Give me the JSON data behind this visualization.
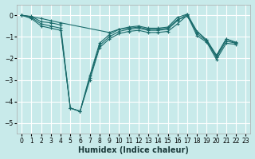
{
  "xlabel": "Humidex (Indice chaleur)",
  "bg_color": "#c8eaea",
  "grid_color": "#ffffff",
  "line_color": "#1a6b6b",
  "xlim": [
    -0.5,
    23.5
  ],
  "ylim": [
    -5.5,
    0.5
  ],
  "xticks": [
    0,
    1,
    2,
    3,
    4,
    5,
    6,
    7,
    8,
    9,
    10,
    11,
    12,
    13,
    14,
    15,
    16,
    17,
    18,
    19,
    20,
    21,
    22,
    23
  ],
  "yticks": [
    0,
    -1,
    -2,
    -3,
    -4,
    -5
  ],
  "series": [
    {
      "x": [
        0,
        1,
        2,
        3,
        4,
        5,
        6,
        7,
        8,
        9,
        10,
        11,
        12,
        13,
        14,
        15,
        16,
        17,
        18,
        19,
        20,
        21,
        22
      ],
      "y": [
        0.0,
        -0.05,
        -0.3,
        -0.35,
        -0.45,
        -4.3,
        -4.45,
        -2.8,
        -1.3,
        -0.9,
        -0.65,
        -0.55,
        -0.5,
        -0.6,
        -0.6,
        -0.55,
        -0.1,
        0.05,
        -0.75,
        -1.15,
        -1.85,
        -1.1,
        -1.25
      ]
    },
    {
      "x": [
        0,
        1,
        2,
        3,
        4,
        5,
        6,
        7,
        8,
        9,
        10,
        11,
        12,
        13,
        14,
        15,
        16,
        17,
        18,
        19,
        20,
        21,
        22
      ],
      "y": [
        0.0,
        -0.1,
        -0.4,
        -0.5,
        -0.6,
        -4.3,
        -4.45,
        -2.9,
        -1.4,
        -1.0,
        -0.75,
        -0.65,
        -0.6,
        -0.7,
        -0.7,
        -0.65,
        -0.25,
        0.05,
        -0.85,
        -1.2,
        -1.95,
        -1.2,
        -1.3
      ]
    },
    {
      "x": [
        0,
        1,
        2,
        3,
        4,
        5,
        6,
        7,
        8,
        9,
        10,
        11,
        12,
        13,
        14,
        15,
        16,
        17,
        18,
        19,
        20,
        21,
        22
      ],
      "y": [
        0.0,
        -0.15,
        -0.5,
        -0.6,
        -0.7,
        -4.3,
        -4.45,
        -3.0,
        -1.5,
        -1.1,
        -0.85,
        -0.75,
        -0.7,
        -0.8,
        -0.8,
        -0.75,
        -0.4,
        0.0,
        -0.95,
        -1.25,
        -2.05,
        -1.3,
        -1.35
      ]
    },
    {
      "x": [
        0,
        2,
        3,
        4,
        9,
        10,
        11,
        12,
        13,
        14,
        15,
        16,
        17,
        18,
        19,
        20,
        21,
        22
      ],
      "y": [
        0.0,
        -0.15,
        -0.25,
        -0.35,
        -0.8,
        -0.65,
        -0.6,
        -0.55,
        -0.65,
        -0.65,
        -0.6,
        -0.2,
        -0.05,
        -0.75,
        -1.15,
        -1.9,
        -1.1,
        -1.3
      ]
    }
  ],
  "tick_fontsize": 5.5,
  "xlabel_fontsize": 7
}
